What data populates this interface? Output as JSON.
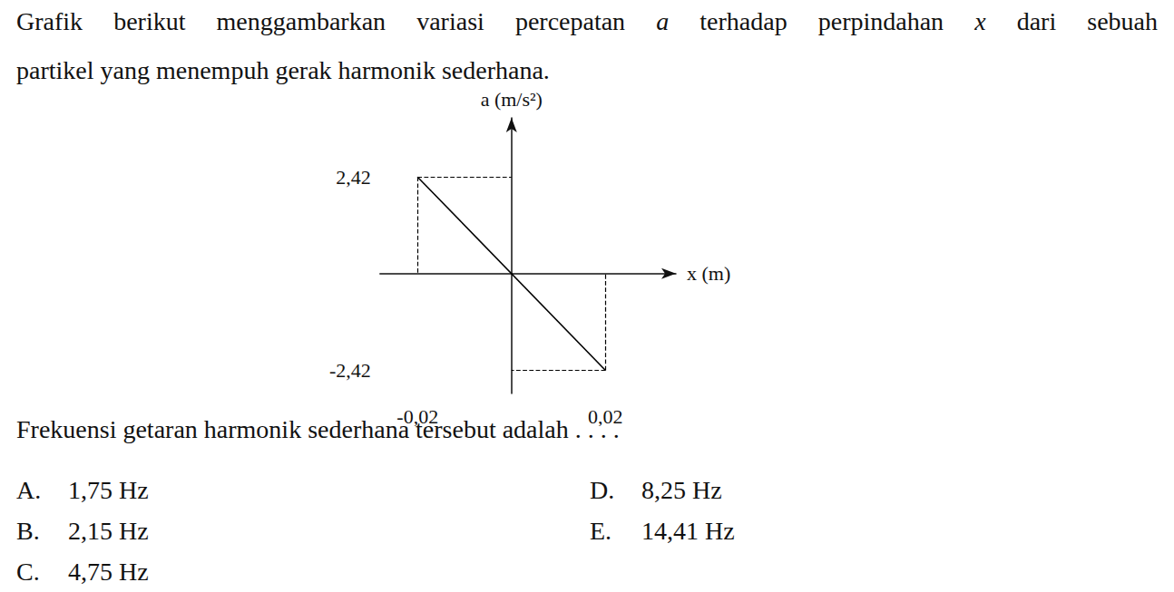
{
  "question_lines": [
    "Grafik berikut menggambarkan variasi percepatan a terhadap perpindahan x dari sebuah",
    "partikel yang menempuh gerak harmonik sederhana."
  ],
  "chart_data": {
    "type": "line",
    "x_label": "x (m)",
    "y_label": "a (m/s²)",
    "x": [
      -0.02,
      0.02
    ],
    "values": [
      2.42,
      -2.42
    ],
    "xlim": [
      -0.028,
      0.035
    ],
    "ylim": [
      -3.0,
      3.9
    ],
    "xticks": [
      {
        "value": -0.02,
        "label": "-0,02"
      },
      {
        "value": 0.02,
        "label": "0,02"
      }
    ],
    "yticks": [
      {
        "value": -2.42,
        "label": "-2,42"
      },
      {
        "value": 2.42,
        "label": "2,42"
      }
    ],
    "color": "#000000",
    "line_style": "solid",
    "grid": false
  },
  "prompt": "Frekuensi getaran harmonik sederhana tersebut adalah . . . .",
  "options": [
    {
      "letter": "A.",
      "text": "1,75 Hz"
    },
    {
      "letter": "B.",
      "text": "2,15 Hz"
    },
    {
      "letter": "C.",
      "text": "4,75 Hz"
    },
    {
      "letter": "D.",
      "text": "8,25 Hz"
    },
    {
      "letter": "E.",
      "text": "14,41 Hz"
    }
  ]
}
